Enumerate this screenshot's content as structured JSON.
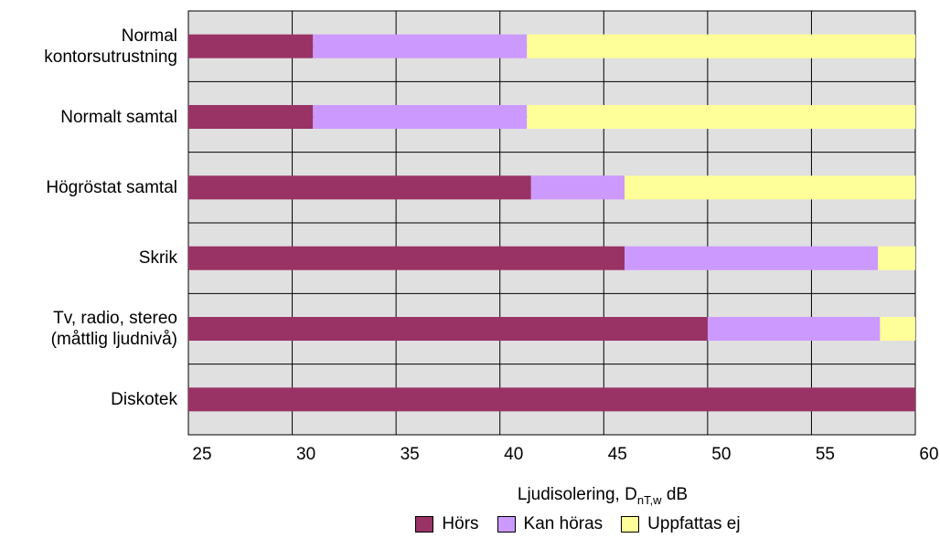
{
  "chart_data": {
    "type": "bar",
    "orientation": "horizontal",
    "stacked": true,
    "categories": [
      [
        "Normal",
        "kontorsutrustning"
      ],
      [
        "Normalt samtal"
      ],
      [
        "Högröstat samtal"
      ],
      [
        "Skrik"
      ],
      [
        "Tv, radio, stereo",
        "(måttlig ljudnivå)"
      ],
      [
        "Diskotek"
      ]
    ],
    "series": [
      {
        "name": "Hörs",
        "color": "#993366",
        "ranges": [
          [
            25,
            31
          ],
          [
            25,
            31
          ],
          [
            25,
            41.5
          ],
          [
            25,
            46
          ],
          [
            25,
            50
          ],
          [
            25,
            60
          ]
        ]
      },
      {
        "name": "Kan höras",
        "color": "#cc99ff",
        "ranges": [
          [
            31,
            41.3
          ],
          [
            31,
            41.3
          ],
          [
            41.5,
            46
          ],
          [
            46,
            58.2
          ],
          [
            50,
            58.3
          ],
          null
        ]
      },
      {
        "name": "Uppfattas ej",
        "color": "#ffff99",
        "ranges": [
          [
            41.3,
            60
          ],
          [
            41.3,
            60
          ],
          [
            46,
            60
          ],
          [
            58.2,
            60
          ],
          [
            58.3,
            60
          ],
          null
        ]
      }
    ],
    "xlim": [
      25,
      60
    ],
    "xticks": [
      "25",
      "30",
      "35",
      "40",
      "45",
      "50",
      "55",
      "60"
    ],
    "xlabel": {
      "main": "Ljudisolering, D",
      "subscript": "nT,w",
      "unit": " dB"
    },
    "grid": true,
    "plot_background": "#e0e0e0",
    "legend_position": "bottom"
  }
}
